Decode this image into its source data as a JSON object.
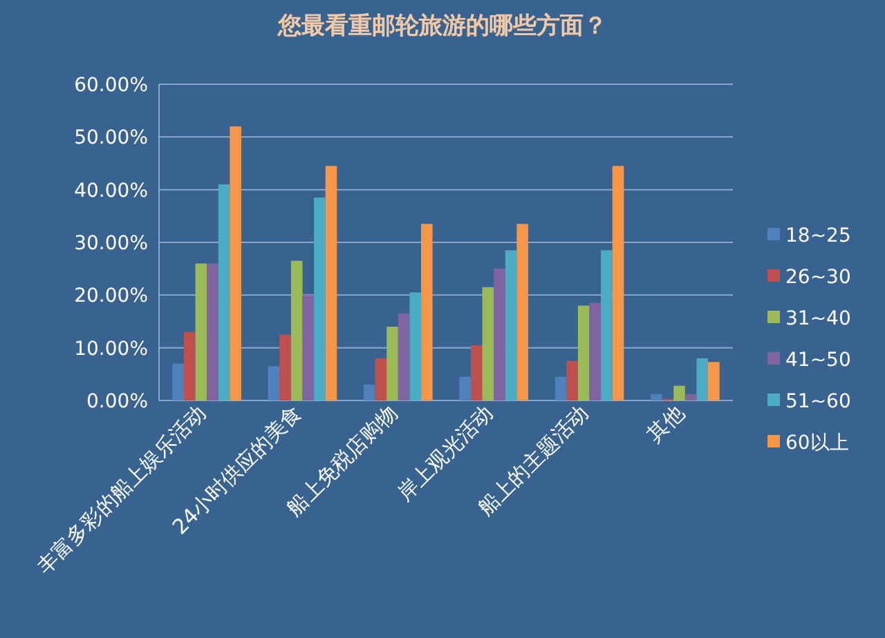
{
  "chart_data": {
    "type": "bar",
    "title": "您最看重邮轮旅游的哪些方面？",
    "categories": [
      "丰富多彩的船上娱乐活动",
      "24小时供应的美食",
      "船上免税店购物",
      "岸上观光活动",
      "船上的主题活动",
      "其他"
    ],
    "series": [
      {
        "name": "18~25",
        "color": "#4f81bd",
        "values": [
          7,
          6.5,
          3,
          4.5,
          4.5,
          1.2
        ]
      },
      {
        "name": "26~30",
        "color": "#c0504d",
        "values": [
          13,
          12.5,
          8,
          10.5,
          7.5,
          0.3
        ]
      },
      {
        "name": "31~40",
        "color": "#9bbb59",
        "values": [
          26,
          26.5,
          14,
          21.5,
          18,
          2.8
        ]
      },
      {
        "name": "41~50",
        "color": "#8064a2",
        "values": [
          26,
          20,
          16.5,
          25,
          18.5,
          1.2
        ]
      },
      {
        "name": "51~60",
        "color": "#4bacc6",
        "values": [
          41,
          38.5,
          20.5,
          28.5,
          28.5,
          8
        ]
      },
      {
        "name": "60以上",
        "color": "#f79646",
        "values": [
          52,
          44.5,
          33.5,
          33.5,
          44.5,
          7.3
        ]
      }
    ],
    "ylim": [
      0,
      60
    ],
    "yticks": [
      {
        "value": 0,
        "label": "0.00%"
      },
      {
        "value": 10,
        "label": "10.00%"
      },
      {
        "value": 20,
        "label": "20.00%"
      },
      {
        "value": 30,
        "label": "30.00%"
      },
      {
        "value": 40,
        "label": "40.00%"
      },
      {
        "value": 50,
        "label": "50.00%"
      },
      {
        "value": 60,
        "label": "60.00%"
      }
    ],
    "grid": "y",
    "legend": "right"
  }
}
